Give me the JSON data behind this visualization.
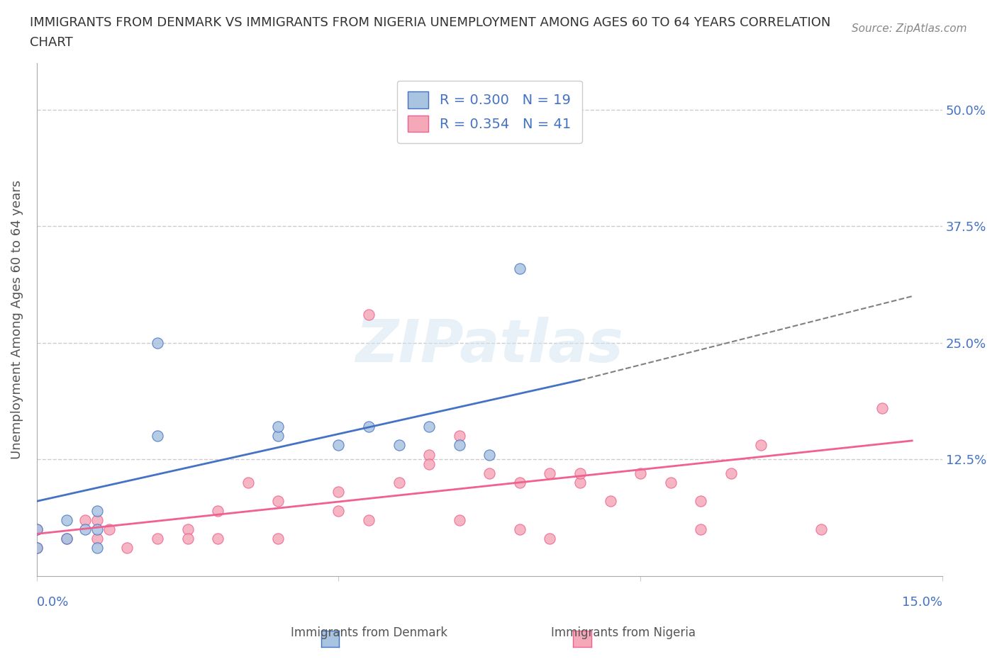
{
  "title_line1": "IMMIGRANTS FROM DENMARK VS IMMIGRANTS FROM NIGERIA UNEMPLOYMENT AMONG AGES 60 TO 64 YEARS CORRELATION",
  "title_line2": "CHART",
  "source_text": "Source: ZipAtlas.com",
  "ylabel": "Unemployment Among Ages 60 to 64 years",
  "xlim": [
    0.0,
    0.15
  ],
  "ylim": [
    0.0,
    0.55
  ],
  "ytick_positions": [
    0.0,
    0.125,
    0.25,
    0.375,
    0.5
  ],
  "yticklabels": [
    "",
    "12.5%",
    "25.0%",
    "37.5%",
    "50.0%"
  ],
  "watermark": "ZIPatlas",
  "legend_r_denmark": "R = 0.300",
  "legend_n_denmark": "N = 19",
  "legend_r_nigeria": "R = 0.354",
  "legend_n_nigeria": "N = 41",
  "denmark_color": "#a8c4e0",
  "nigeria_color": "#f4a8b8",
  "denmark_line_color": "#4472c4",
  "nigeria_line_color": "#f06090",
  "denmark_scatter": {
    "x": [
      0.0,
      0.0,
      0.005,
      0.005,
      0.008,
      0.01,
      0.01,
      0.01,
      0.02,
      0.02,
      0.04,
      0.04,
      0.05,
      0.055,
      0.06,
      0.065,
      0.07,
      0.075,
      0.08
    ],
    "y": [
      0.05,
      0.03,
      0.04,
      0.06,
      0.05,
      0.03,
      0.05,
      0.07,
      0.25,
      0.15,
      0.15,
      0.16,
      0.14,
      0.16,
      0.14,
      0.16,
      0.14,
      0.13,
      0.33
    ]
  },
  "nigeria_scatter": {
    "x": [
      0.0,
      0.0,
      0.005,
      0.008,
      0.01,
      0.01,
      0.012,
      0.015,
      0.02,
      0.025,
      0.025,
      0.03,
      0.03,
      0.035,
      0.04,
      0.04,
      0.05,
      0.05,
      0.055,
      0.055,
      0.06,
      0.065,
      0.065,
      0.07,
      0.07,
      0.075,
      0.08,
      0.08,
      0.085,
      0.085,
      0.09,
      0.09,
      0.095,
      0.1,
      0.105,
      0.11,
      0.11,
      0.115,
      0.12,
      0.13,
      0.14
    ],
    "y": [
      0.03,
      0.05,
      0.04,
      0.06,
      0.04,
      0.06,
      0.05,
      0.03,
      0.04,
      0.05,
      0.04,
      0.04,
      0.07,
      0.1,
      0.04,
      0.08,
      0.07,
      0.09,
      0.06,
      0.28,
      0.1,
      0.13,
      0.12,
      0.06,
      0.15,
      0.11,
      0.05,
      0.1,
      0.11,
      0.04,
      0.1,
      0.11,
      0.08,
      0.11,
      0.1,
      0.05,
      0.08,
      0.11,
      0.14,
      0.05,
      0.18
    ]
  },
  "denmark_trendline": {
    "x": [
      0.0,
      0.09
    ],
    "y": [
      0.08,
      0.21
    ]
  },
  "denmark_extrap": {
    "x": [
      0.09,
      0.145
    ],
    "y": [
      0.21,
      0.3
    ]
  },
  "nigeria_trendline": {
    "x": [
      0.0,
      0.145
    ],
    "y": [
      0.045,
      0.145
    ]
  },
  "background_color": "#ffffff",
  "grid_color": "#cccccc",
  "title_color": "#333333",
  "axis_label_color": "#555555",
  "tick_label_color_right": "#4472c4"
}
